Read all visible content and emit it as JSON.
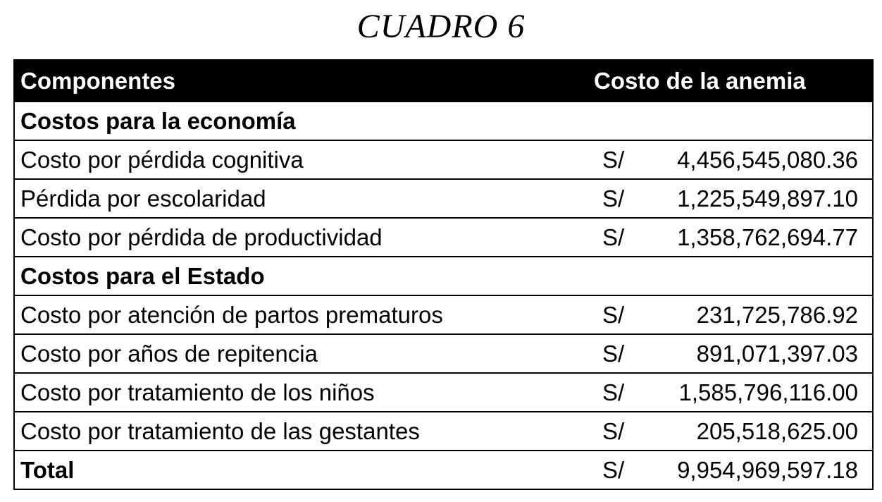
{
  "title": "CUADRO 6",
  "table": {
    "headers": {
      "component": "Componentes",
      "cost": "Costo de la anemia"
    },
    "sections": [
      {
        "name": "Costos para la economía",
        "rows": [
          {
            "label": "Costo por pérdida cognitiva",
            "currency": "S/",
            "amount": "4,456,545,080.36"
          },
          {
            "label": "Pérdida por escolaridad",
            "currency": "S/",
            "amount": "1,225,549,897.10"
          },
          {
            "label": "Costo por pérdida de productividad",
            "currency": "S/",
            "amount": "1,358,762,694.77"
          }
        ]
      },
      {
        "name": "Costos para el Estado",
        "rows": [
          {
            "label": "Costo por atención de partos prematuros",
            "currency": "S/",
            "amount": "231,725,786.92"
          },
          {
            "label": "Costo por años de repitencia",
            "currency": "S/",
            "amount": "891,071,397.03"
          },
          {
            "label": "Costo por tratamiento de los niños",
            "currency": "S/",
            "amount": "1,585,796,116.00"
          },
          {
            "label": "Costo por tratamiento de las gestantes",
            "currency": "S/",
            "amount": "205,518,625.00"
          }
        ]
      }
    ],
    "total": {
      "label": "Total",
      "currency": "S/",
      "amount": "9,954,969,597.18"
    }
  }
}
